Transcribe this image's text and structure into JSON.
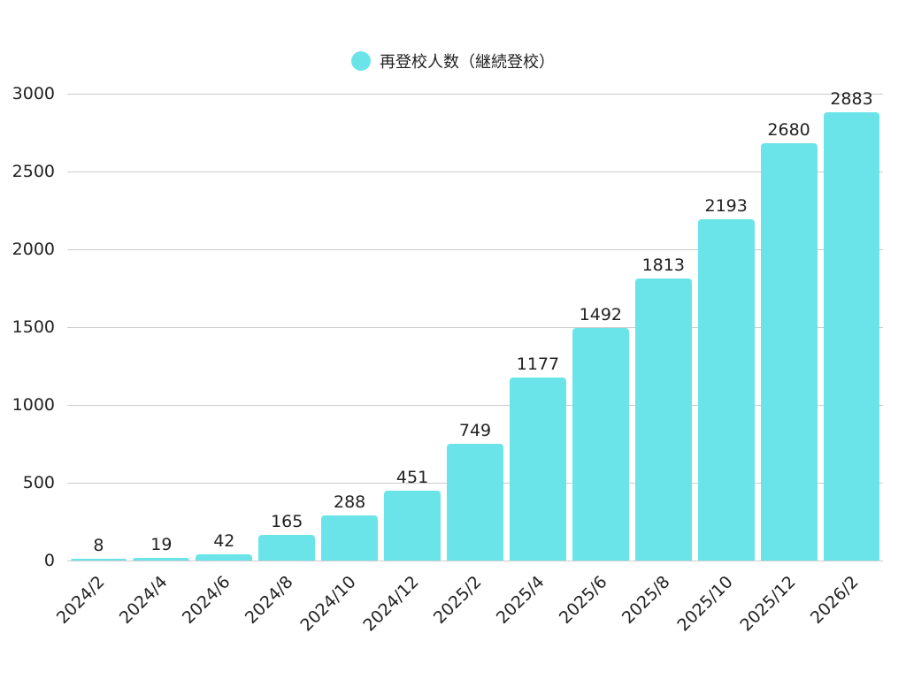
{
  "legend": {
    "label": "再登校人数（継続登校）",
    "color": "#6ae4e8"
  },
  "colors": {
    "bar": "#6ae4e8",
    "grid": "#cccccc",
    "text": "#222222"
  },
  "chart_data": {
    "type": "bar",
    "title": "",
    "xlabel": "",
    "ylabel": "",
    "categories": [
      "2024/2",
      "2024/4",
      "2024/6",
      "2024/8",
      "2024/10",
      "2024/12",
      "2025/2",
      "2025/4",
      "2025/6",
      "2025/8",
      "2025/10",
      "2025/12",
      "2026/2"
    ],
    "series": [
      {
        "name": "再登校人数（継続登校）",
        "values": [
          8,
          19,
          42,
          165,
          288,
          451,
          749,
          1177,
          1492,
          1813,
          2193,
          2680,
          2883
        ]
      }
    ],
    "ylim": [
      0,
      3000
    ],
    "yticks": [
      0,
      500,
      1000,
      1500,
      2000,
      2500,
      3000
    ],
    "grid": true,
    "legend_position": "top",
    "data_labels": true
  }
}
